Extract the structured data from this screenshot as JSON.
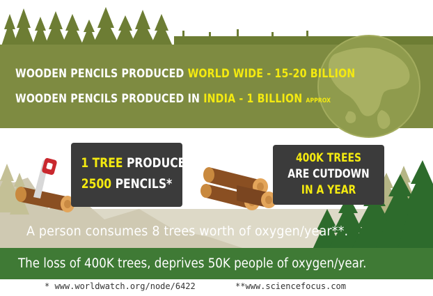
{
  "stats": {
    "line1": {
      "label": "WOODEN PENCILS PRODUCED ",
      "highlight": "WORLD WIDE - 15-20 BILLION"
    },
    "line2": {
      "label": "WOODEN PENCILS PRODUCED IN ",
      "highlight": "INDIA - 1 BILLION",
      "suffix": "APPROX"
    }
  },
  "tree_box": {
    "hl1": "1 TREE",
    "rest1": " PRODUCES",
    "hl2": "2500",
    "rest2": " PENCILS*"
  },
  "cut_box": {
    "line1": "400K TREES",
    "line2": "ARE CUTDOWN",
    "line3": "IN A YEAR"
  },
  "oxygen_text": "A person consumes 8 trees worth of oxygen/year**.",
  "loss_text": "The loss of 400K trees, deprives 50K people of oxygen/year.",
  "footer": {
    "source1": "* www.worldwatch.org/node/6422",
    "source2": "**www.sciencefocus.com"
  },
  "colors": {
    "banner": "#7e8b41",
    "highlight": "#f4ea10",
    "box": "#3b3b3b",
    "bottom_bar": "#3f7a35",
    "beige_band": "#ddd9c7",
    "dark_tree": "#2d6b2c",
    "light_tree": "#aeb07c"
  },
  "icons": [
    "tree-skyline-icon",
    "globe-icon",
    "log-icon",
    "saw-icon",
    "log-pile-icon"
  ]
}
